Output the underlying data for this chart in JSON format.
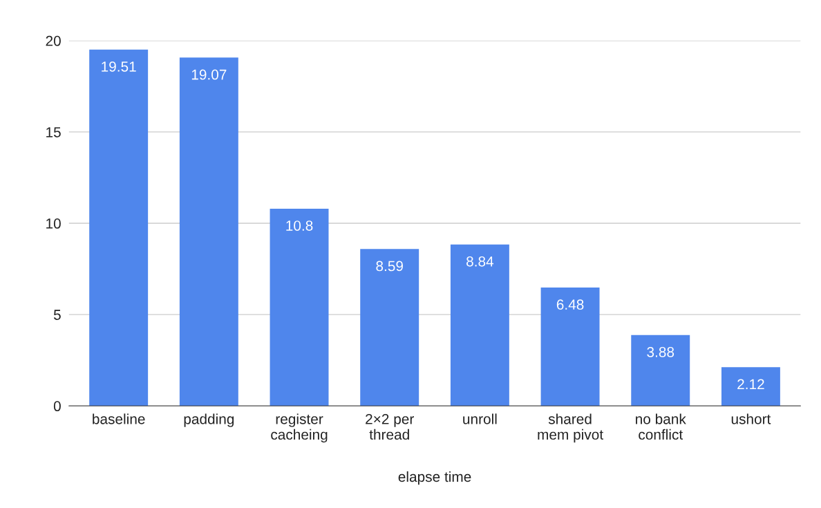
{
  "chart_data": {
    "type": "bar",
    "xlabel": "elapse time",
    "categories": [
      "baseline",
      "padding",
      "register\ncacheing",
      "2×2 per\nthread",
      "unroll",
      "shared\nmem pivot",
      "no bank\nconflict",
      "ushort"
    ],
    "values": [
      19.51,
      19.07,
      10.8,
      8.59,
      8.84,
      6.48,
      3.88,
      2.12
    ],
    "color": "#4f86ec",
    "ylim": [
      0,
      20
    ],
    "yticks": [
      0,
      5,
      10,
      15,
      20
    ],
    "grid": "y",
    "data_labels": true
  }
}
